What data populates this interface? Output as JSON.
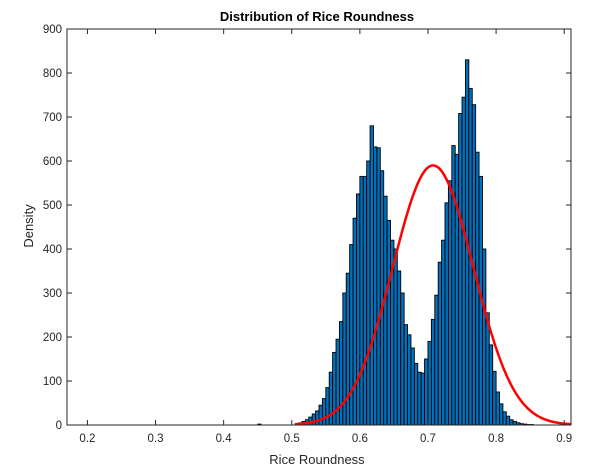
{
  "chart_data": {
    "type": "bar",
    "title": "Distribution of Rice Roundness",
    "xlabel": "Rice Roundness",
    "ylabel": "Density",
    "xlim": [
      0.17,
      0.91
    ],
    "ylim": [
      0,
      900
    ],
    "xticks": [
      "0.2",
      "0.3",
      "0.4",
      "0.5",
      "0.6",
      "0.7",
      "0.8",
      "0.9"
    ],
    "yticks": [
      "0",
      "100",
      "200",
      "300",
      "400",
      "500",
      "600",
      "700",
      "800",
      "900"
    ],
    "grid": false,
    "bin_width": 0.005,
    "bin_centers": [
      0.4525,
      0.5075,
      0.5125,
      0.5175,
      0.5225,
      0.5275,
      0.5325,
      0.5375,
      0.5425,
      0.5475,
      0.5525,
      0.5575,
      0.5625,
      0.5675,
      0.5725,
      0.5775,
      0.5825,
      0.5875,
      0.5925,
      0.5975,
      0.6025,
      0.6075,
      0.6125,
      0.6175,
      0.6225,
      0.6275,
      0.6325,
      0.6375,
      0.6425,
      0.6475,
      0.6525,
      0.6575,
      0.6625,
      0.6675,
      0.6725,
      0.6775,
      0.6825,
      0.6875,
      0.6925,
      0.6975,
      0.7025,
      0.7075,
      0.7125,
      0.7175,
      0.7225,
      0.7275,
      0.7325,
      0.7375,
      0.7425,
      0.7475,
      0.7525,
      0.7575,
      0.7625,
      0.7675,
      0.7725,
      0.7775,
      0.7825,
      0.7875,
      0.7925,
      0.7975,
      0.8025,
      0.8075,
      0.8125,
      0.8175,
      0.8225,
      0.8275,
      0.8325,
      0.8375,
      0.8425,
      0.8475,
      0.8525,
      0.8575,
      0.8625,
      0.8675
    ],
    "series": [
      {
        "kind": "histogram",
        "color": "#0072BD",
        "edge_color": "#000000",
        "values": [
          2,
          3,
          5,
          8,
          12,
          18,
          25,
          32,
          45,
          60,
          85,
          120,
          165,
          195,
          235,
          300,
          345,
          410,
          470,
          525,
          565,
          565,
          600,
          680,
          632,
          630,
          578,
          520,
          465,
          420,
          400,
          350,
          300,
          228,
          205,
          175,
          140,
          120,
          118,
          150,
          190,
          240,
          295,
          370,
          420,
          505,
          555,
          635,
          615,
          708,
          745,
          830,
          765,
          728,
          620,
          565,
          400,
          255,
          182,
          122,
          75,
          48,
          30,
          20,
          12,
          8,
          5,
          3,
          2,
          1,
          1,
          0,
          0,
          0
        ]
      },
      {
        "kind": "curve",
        "color": "#FF0000",
        "mean": 0.7075,
        "sd": 0.0593,
        "peak": 590,
        "x_range": [
          0.505,
          0.91
        ]
      }
    ]
  }
}
